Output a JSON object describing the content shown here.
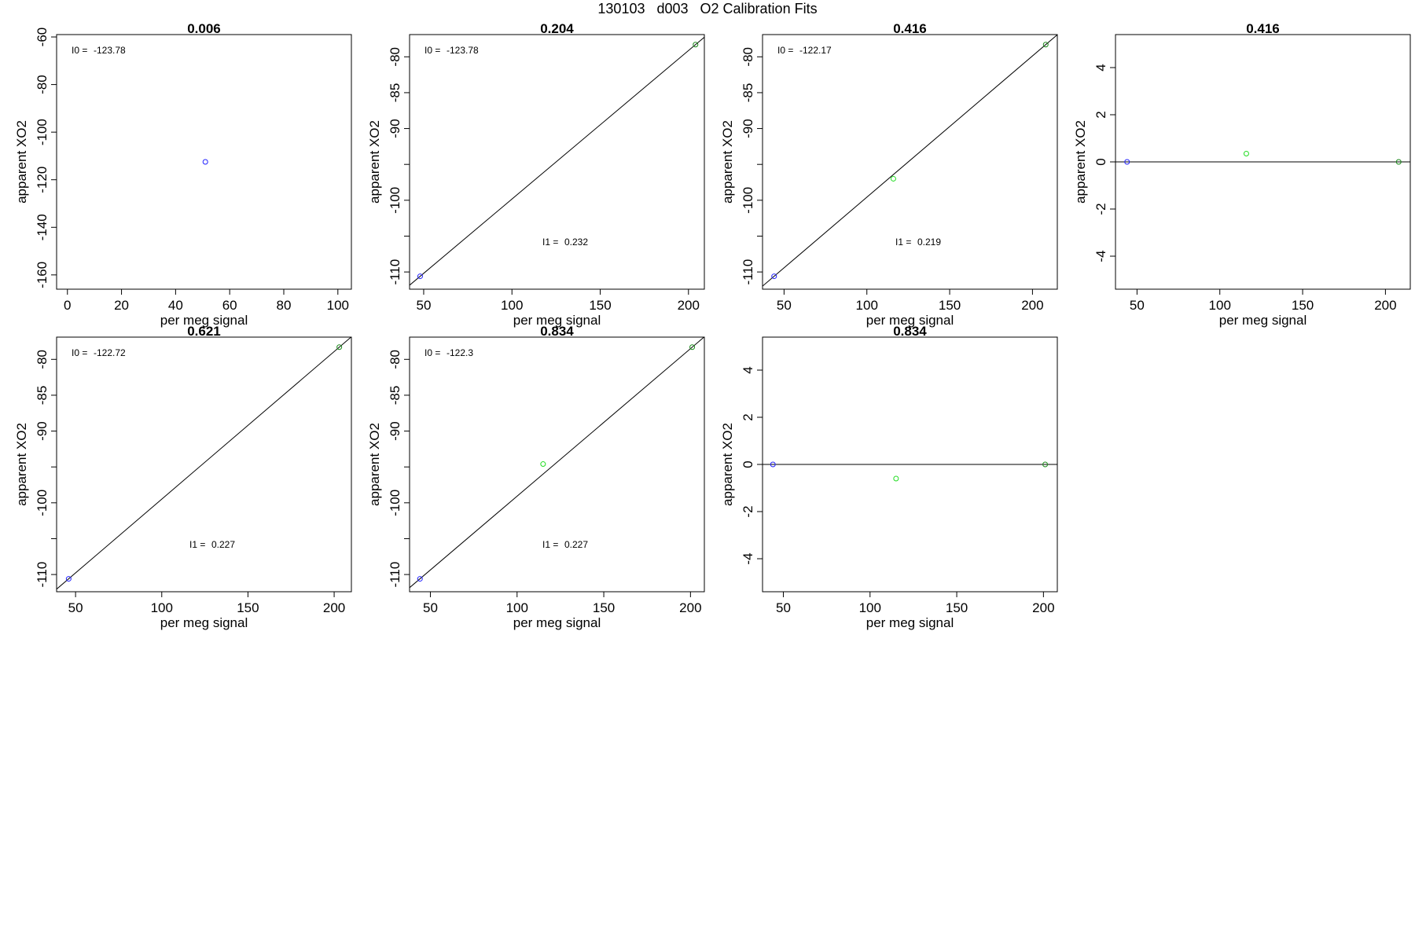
{
  "title": "130103   d003   O2 Calibration Fits",
  "chart_data": [
    {
      "type": "scatter",
      "title": "0.006",
      "xlabel": "per meg signal",
      "ylabel": "apparent XO2",
      "xlim": [
        -4,
        105
      ],
      "ylim": [
        -166,
        -59
      ],
      "xticks": [
        0,
        20,
        40,
        60,
        80,
        100
      ],
      "yticks": [
        -60,
        -80,
        -100,
        -120,
        -140,
        -160
      ],
      "points": [
        {
          "x": 51,
          "y": -112.5,
          "color": "#2222ff"
        }
      ],
      "annotations": [
        {
          "name": "I0",
          "label": "I0 =",
          "value": "-123.78"
        }
      ],
      "line": null
    },
    {
      "type": "scatter",
      "title": "0.204",
      "xlabel": "per meg signal",
      "ylabel": "apparent XO2",
      "xlim": [
        42,
        209
      ],
      "ylim": [
        -112.4,
        -76.9
      ],
      "xticks": [
        50,
        100,
        150,
        200
      ],
      "yticks": [
        -80,
        -85,
        -90,
        -95,
        -100,
        -105,
        -110
      ],
      "ytick_labels": [
        "-80",
        "-85",
        "-90",
        "",
        "-100",
        "",
        "-110"
      ],
      "points": [
        {
          "x": 48,
          "y": -110.6,
          "color": "#2222ff"
        },
        {
          "x": 204,
          "y": -78.3,
          "color": "#1a8a1a"
        }
      ],
      "annotations": [
        {
          "name": "I0",
          "label": "I0 =",
          "value": "-123.78"
        },
        {
          "name": "I1",
          "label": "I1 =",
          "value": "0.232"
        }
      ],
      "line": "fit"
    },
    {
      "type": "scatter",
      "title": "0.416",
      "xlabel": "per meg signal",
      "ylabel": "apparent XO2",
      "xlim": [
        37,
        215
      ],
      "ylim": [
        -112.4,
        -76.9
      ],
      "xticks": [
        50,
        100,
        150,
        200
      ],
      "yticks": [
        -80,
        -85,
        -90,
        -95,
        -100,
        -105,
        -110
      ],
      "ytick_labels": [
        "-80",
        "-85",
        "-90",
        "",
        "-100",
        "",
        "-110"
      ],
      "points": [
        {
          "x": 44,
          "y": -110.6,
          "color": "#2222ff"
        },
        {
          "x": 116,
          "y": -97.0,
          "color": "#22dd22"
        },
        {
          "x": 208,
          "y": -78.3,
          "color": "#1a8a1a"
        }
      ],
      "annotations": [
        {
          "name": "I0",
          "label": "I0 =",
          "value": "-122.17"
        },
        {
          "name": "I1",
          "label": "I1 =",
          "value": "0.219"
        }
      ],
      "line": "fit"
    },
    {
      "type": "scatter",
      "title": "0.416",
      "xlabel": "per meg signal",
      "ylabel": "apparent XO2",
      "xlim": [
        37,
        215
      ],
      "ylim": [
        -5.4,
        5.4
      ],
      "xticks": [
        50,
        100,
        150,
        200
      ],
      "yticks": [
        4,
        2,
        0,
        -2,
        -4
      ],
      "points": [
        {
          "x": 44,
          "y": 0,
          "color": "#2222ff"
        },
        {
          "x": 116,
          "y": 0.35,
          "color": "#22dd22"
        },
        {
          "x": 208,
          "y": 0,
          "color": "#1a8a1a"
        }
      ],
      "annotations": [],
      "line": "zero"
    },
    {
      "type": "scatter",
      "title": "0.621",
      "xlabel": "per meg signal",
      "ylabel": "apparent XO2",
      "xlim": [
        39,
        210
      ],
      "ylim": [
        -112.4,
        -76.9
      ],
      "xticks": [
        50,
        100,
        150,
        200
      ],
      "yticks": [
        -80,
        -85,
        -90,
        -95,
        -100,
        -105,
        -110
      ],
      "ytick_labels": [
        "-80",
        "-85",
        "-90",
        "",
        "-100",
        "",
        "-110"
      ],
      "points": [
        {
          "x": 46,
          "y": -110.6,
          "color": "#2222ff"
        },
        {
          "x": 203,
          "y": -78.3,
          "color": "#1a8a1a"
        }
      ],
      "annotations": [
        {
          "name": "I0",
          "label": "I0 =",
          "value": "-122.72"
        },
        {
          "name": "I1",
          "label": "I1 =",
          "value": "0.227"
        }
      ],
      "line": "fit"
    },
    {
      "type": "scatter",
      "title": "0.834",
      "xlabel": "per meg signal",
      "ylabel": "apparent XO2",
      "xlim": [
        38,
        208
      ],
      "ylim": [
        -112.4,
        -76.9
      ],
      "xticks": [
        50,
        100,
        150,
        200
      ],
      "yticks": [
        -80,
        -85,
        -90,
        -95,
        -100,
        -105,
        -110
      ],
      "ytick_labels": [
        "-80",
        "-85",
        "-90",
        "",
        "-100",
        "",
        "-110"
      ],
      "points": [
        {
          "x": 44,
          "y": -110.6,
          "color": "#2222ff"
        },
        {
          "x": 115,
          "y": -94.6,
          "color": "#22dd22"
        },
        {
          "x": 201,
          "y": -78.3,
          "color": "#1a8a1a"
        }
      ],
      "annotations": [
        {
          "name": "I0",
          "label": "I0 =",
          "value": "-122.3"
        },
        {
          "name": "I1",
          "label": "I1 =",
          "value": "0.227"
        }
      ],
      "line": "fit"
    },
    {
      "type": "scatter",
      "title": "0.834",
      "xlabel": "per meg signal",
      "ylabel": "apparent XO2",
      "xlim": [
        38,
        208
      ],
      "ylim": [
        -5.4,
        5.4
      ],
      "xticks": [
        50,
        100,
        150,
        200
      ],
      "yticks": [
        4,
        2,
        0,
        -2,
        -4
      ],
      "points": [
        {
          "x": 44,
          "y": 0,
          "color": "#2222ff"
        },
        {
          "x": 115,
          "y": -0.6,
          "color": "#22dd22"
        },
        {
          "x": 201,
          "y": 0,
          "color": "#1a8a1a"
        }
      ],
      "annotations": [],
      "line": "zero"
    }
  ]
}
